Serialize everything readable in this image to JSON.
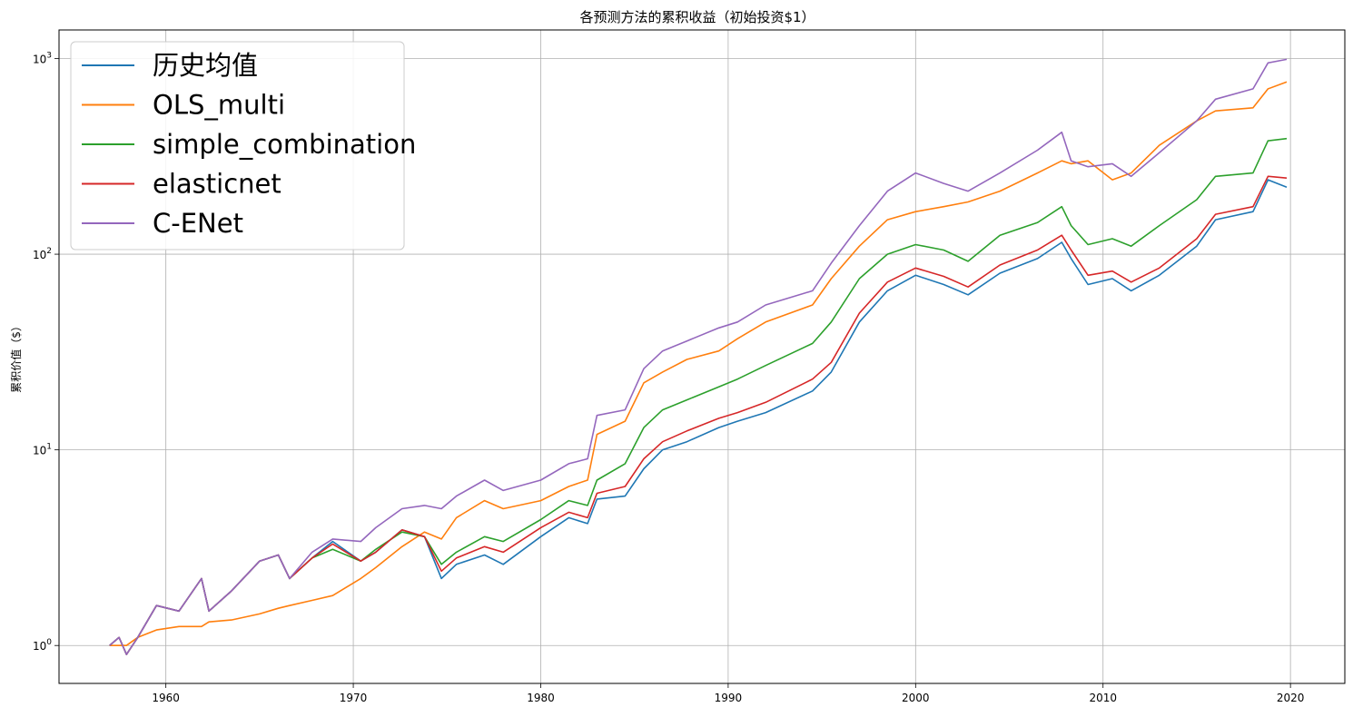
{
  "chart_data": {
    "type": "line",
    "title": "各预测方法的累积收益（初始投资$1）",
    "xlabel": "",
    "ylabel": "累积价值（$）",
    "yscale": "log",
    "xlim": [
      1954.3,
      2022.9
    ],
    "ylim": [
      0.64,
      1400
    ],
    "grid": true,
    "legend_position": "top-left",
    "x_ticks": [
      1960,
      1970,
      1980,
      1990,
      2000,
      2010,
      2020
    ],
    "x_tick_labels": [
      "1960",
      "1970",
      "1980",
      "1990",
      "2000",
      "2010",
      "2020"
    ],
    "y_ticks": [
      1,
      10,
      100,
      1000
    ],
    "y_tick_labels": [
      {
        "base": "10",
        "exp": "0"
      },
      {
        "base": "10",
        "exp": "1"
      },
      {
        "base": "10",
        "exp": "2"
      },
      {
        "base": "10",
        "exp": "3"
      }
    ],
    "x": [
      1957.0,
      1957.5,
      1957.9,
      1958.5,
      1959.5,
      1960.7,
      1961.9,
      1962.3,
      1963.5,
      1965.0,
      1966.0,
      1966.6,
      1967.8,
      1968.9,
      1970.4,
      1971.2,
      1972.6,
      1973.8,
      1974.7,
      1975.5,
      1977.0,
      1978.0,
      1980.0,
      1981.5,
      1982.5,
      1983.0,
      1984.5,
      1985.5,
      1986.5,
      1987.8,
      1989.5,
      1990.5,
      1992.0,
      1994.5,
      1995.5,
      1997.0,
      1998.5,
      2000.0,
      2001.5,
      2002.8,
      2004.5,
      2006.5,
      2007.8,
      2008.3,
      2009.2,
      2010.5,
      2011.5,
      2013.0,
      2015.0,
      2016.0,
      2018.0,
      2018.8,
      2019.8
    ],
    "series": [
      {
        "name": "历史均值",
        "color": "#1f77b4",
        "values": [
          1.0,
          1.1,
          0.9,
          1.1,
          1.6,
          1.5,
          2.2,
          1.5,
          1.9,
          2.7,
          2.9,
          2.2,
          2.8,
          3.4,
          2.7,
          3.0,
          3.9,
          3.6,
          2.2,
          2.6,
          2.9,
          2.6,
          3.6,
          4.5,
          4.2,
          5.6,
          5.8,
          8.0,
          10.0,
          11.0,
          13.0,
          14.0,
          15.5,
          20.0,
          25.0,
          45.0,
          65.0,
          78.0,
          70.0,
          62.0,
          80.0,
          95.0,
          115.0,
          95.0,
          70.0,
          75.0,
          65.0,
          78.0,
          110.0,
          150.0,
          165.0,
          240.0,
          220.0
        ]
      },
      {
        "name": "OLS_multi",
        "color": "#ff7f0e",
        "values": [
          1.0,
          1.0,
          1.0,
          1.1,
          1.2,
          1.25,
          1.25,
          1.32,
          1.35,
          1.45,
          1.55,
          1.6,
          1.7,
          1.8,
          2.2,
          2.5,
          3.2,
          3.8,
          3.5,
          4.5,
          5.5,
          5.0,
          5.5,
          6.5,
          7.0,
          12.0,
          14.0,
          22.0,
          25.0,
          29.0,
          32.0,
          37.0,
          45.0,
          55.0,
          75.0,
          110.0,
          150.0,
          165.0,
          175.0,
          185.0,
          210.0,
          260.0,
          300.0,
          290.0,
          300.0,
          240.0,
          260.0,
          360.0,
          480.0,
          540.0,
          560.0,
          700.0,
          760.0
        ]
      },
      {
        "name": "simple_combination",
        "color": "#2ca02c",
        "values": [
          1.0,
          1.1,
          0.9,
          1.1,
          1.6,
          1.5,
          2.2,
          1.5,
          1.9,
          2.7,
          2.9,
          2.2,
          2.8,
          3.1,
          2.7,
          3.1,
          3.8,
          3.6,
          2.6,
          3.0,
          3.6,
          3.4,
          4.4,
          5.5,
          5.2,
          7.0,
          8.5,
          13.0,
          16.0,
          18.0,
          21.0,
          23.0,
          27.0,
          35.0,
          45.0,
          75.0,
          100.0,
          112.0,
          105.0,
          92.0,
          125.0,
          145.0,
          175.0,
          140.0,
          112.0,
          120.0,
          110.0,
          140.0,
          190.0,
          250.0,
          260.0,
          380.0,
          390.0
        ]
      },
      {
        "name": "elasticnet",
        "color": "#d62728",
        "values": [
          1.0,
          1.1,
          0.9,
          1.1,
          1.6,
          1.5,
          2.2,
          1.5,
          1.9,
          2.7,
          2.9,
          2.2,
          2.8,
          3.3,
          2.7,
          3.0,
          3.9,
          3.6,
          2.4,
          2.8,
          3.2,
          3.0,
          4.0,
          4.8,
          4.5,
          6.0,
          6.5,
          9.0,
          11.0,
          12.5,
          14.5,
          15.5,
          17.5,
          23.0,
          28.0,
          50.0,
          72.0,
          85.0,
          77.0,
          68.0,
          88.0,
          105.0,
          125.0,
          105.0,
          78.0,
          82.0,
          72.0,
          85.0,
          120.0,
          160.0,
          175.0,
          250.0,
          245.0
        ]
      },
      {
        "name": "C-ENet",
        "color": "#9467bd",
        "values": [
          1.0,
          1.1,
          0.9,
          1.1,
          1.6,
          1.5,
          2.2,
          1.5,
          1.9,
          2.7,
          2.9,
          2.2,
          3.0,
          3.5,
          3.4,
          4.0,
          5.0,
          5.2,
          5.0,
          5.8,
          7.0,
          6.2,
          7.0,
          8.5,
          9.0,
          15.0,
          16.0,
          26.0,
          32.0,
          36.0,
          42.0,
          45.0,
          55.0,
          65.0,
          90.0,
          140.0,
          210.0,
          260.0,
          230.0,
          210.0,
          260.0,
          340.0,
          420.0,
          300.0,
          280.0,
          290.0,
          250.0,
          330.0,
          480.0,
          620.0,
          700.0,
          950.0,
          990.0
        ]
      }
    ]
  }
}
